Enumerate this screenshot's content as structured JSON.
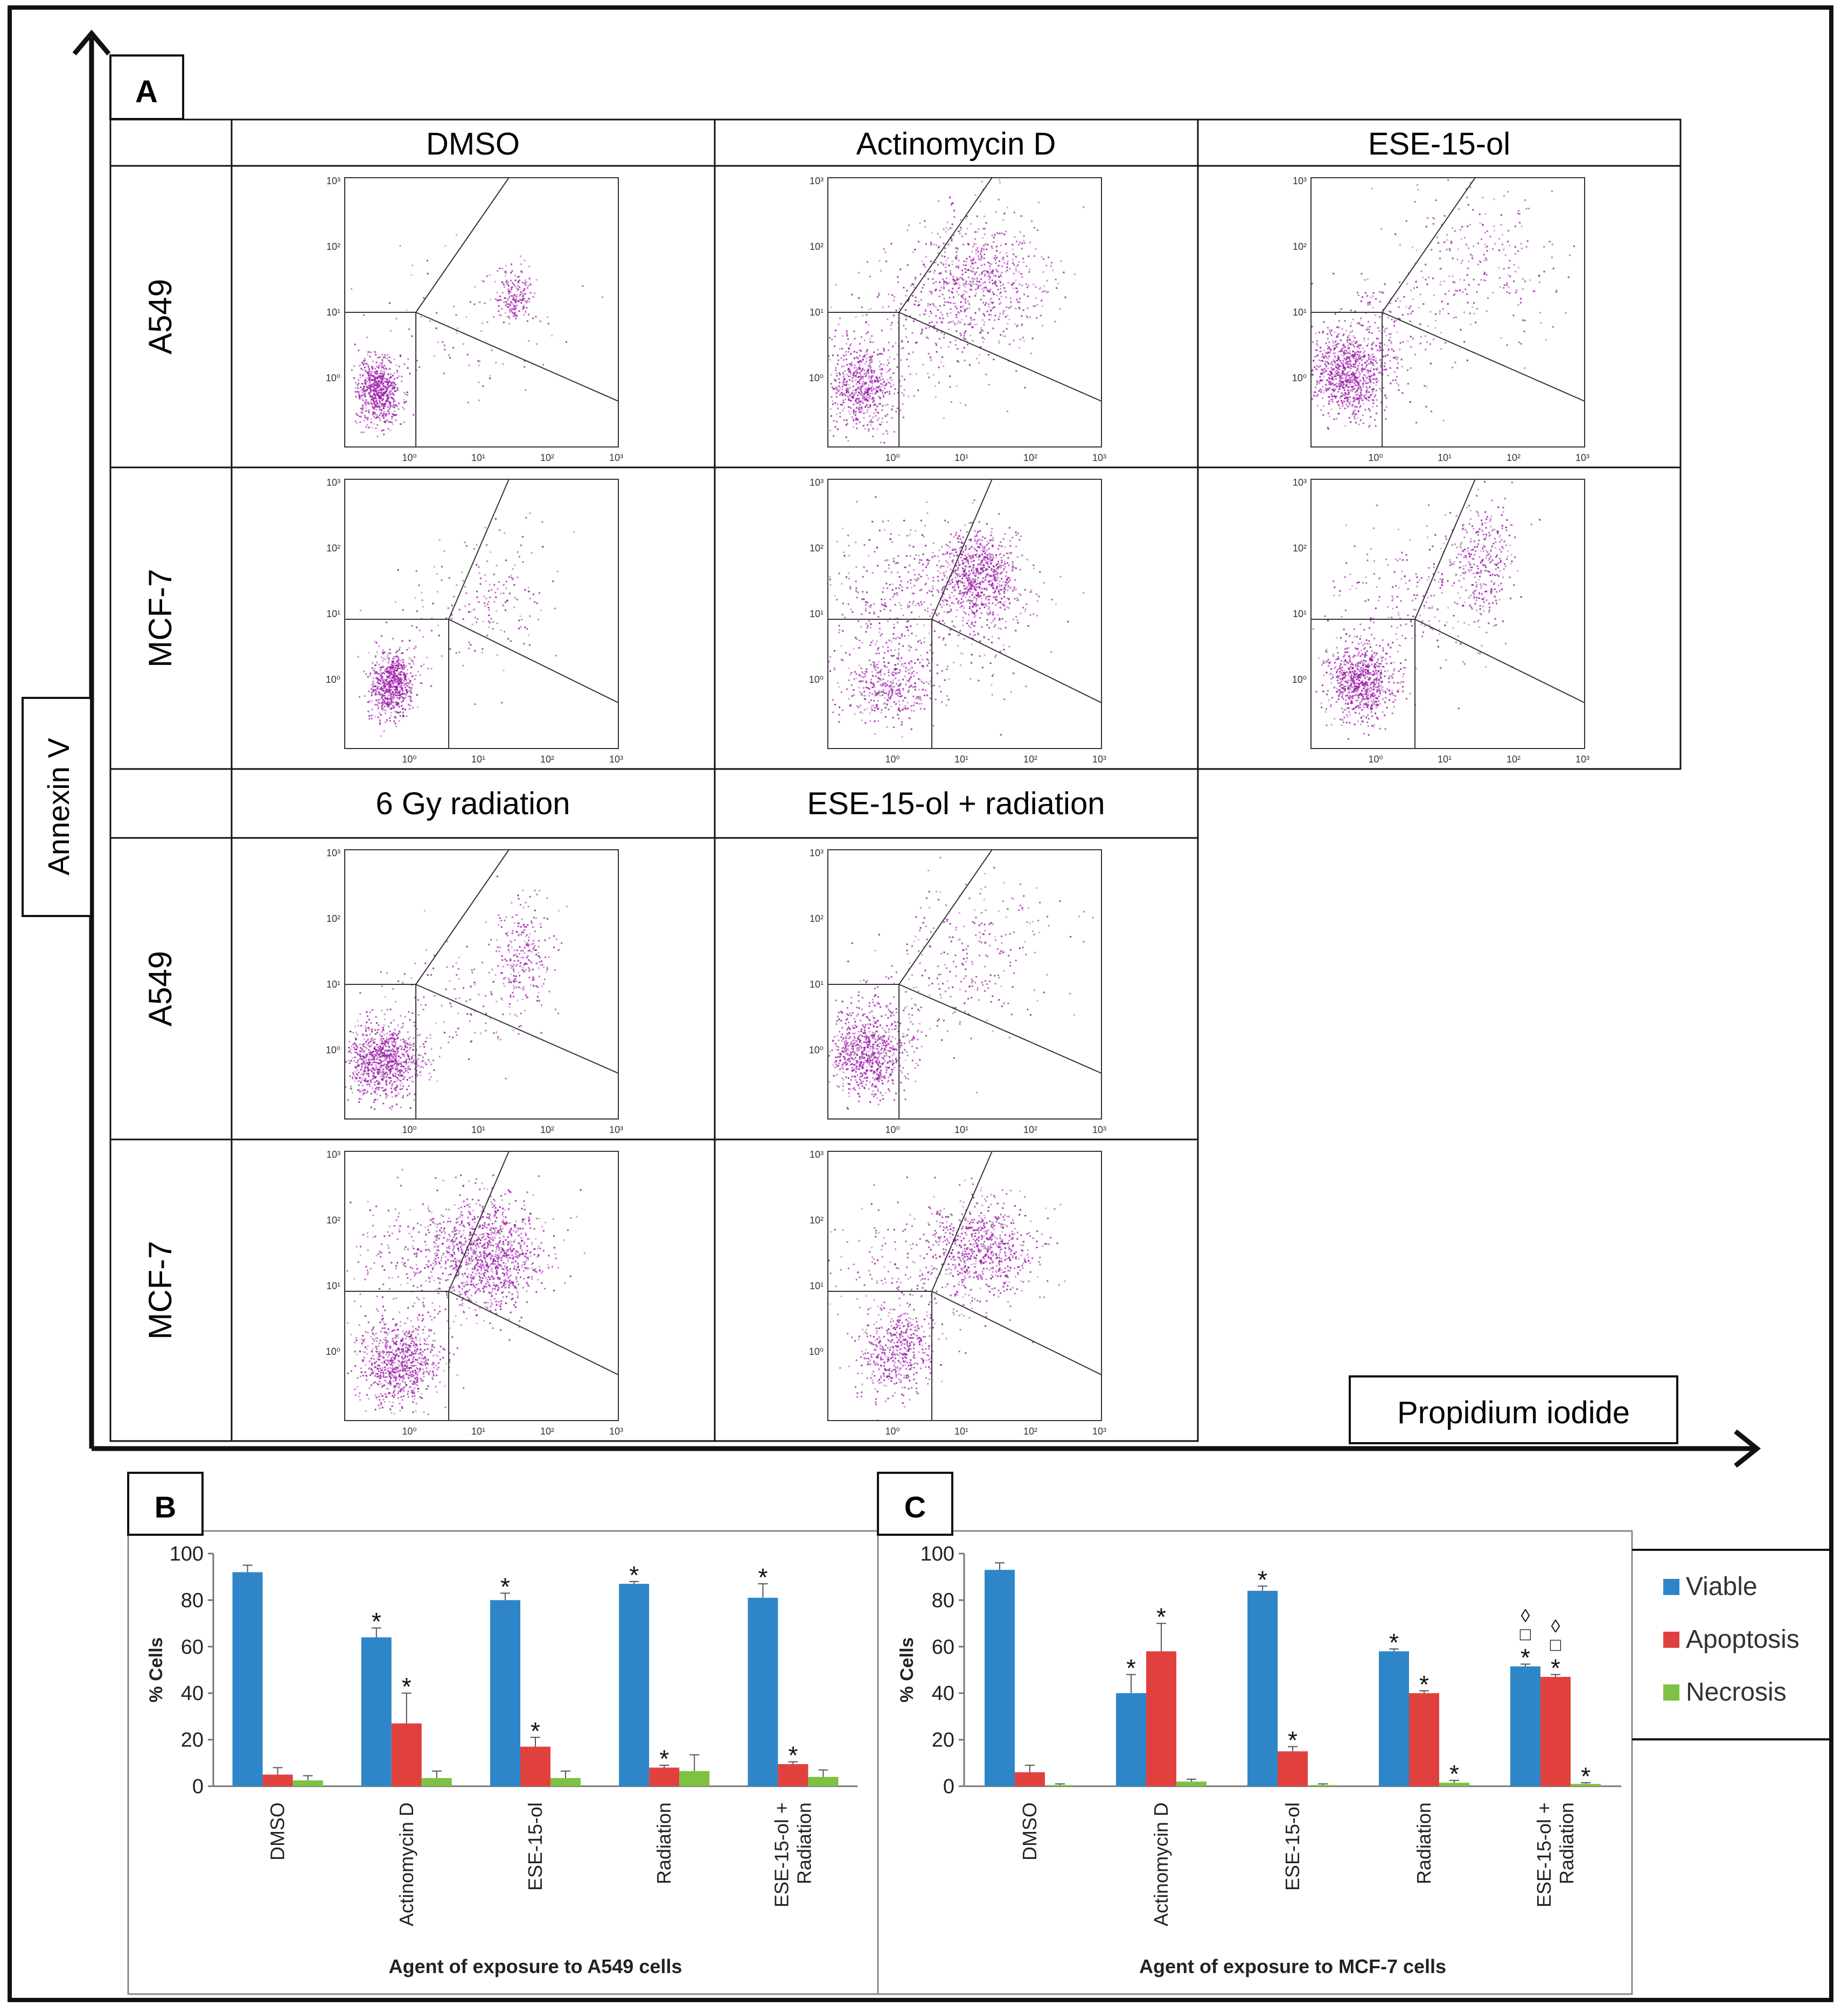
{
  "panel_a": {
    "label": "A",
    "col_headers_top": [
      "DMSO",
      "Actinomycin D",
      "ESE-15-ol"
    ],
    "col_headers_bottom": [
      "6 Gy radiation",
      "ESE-15-ol + radiation"
    ],
    "row_labels_top": [
      "A549",
      "MCF-7"
    ],
    "row_labels_bottom": [
      "A549",
      "MCF-7"
    ],
    "y_axis_label": "Annexin V",
    "x_axis_label": "Propidium iodide",
    "plot_tick_labels": [
      "10⁰",
      "10¹",
      "10²",
      "10³"
    ],
    "plot_tick_labels_y": [
      "10⁰",
      "10¹",
      "10²",
      "10³"
    ]
  },
  "chart_data": [
    {
      "type": "bar",
      "panel_label": "B",
      "categories": [
        "DMSO",
        "Actinomycin D",
        "ESE-15-ol",
        "Radiation",
        "ESE-15-ol + Radiation"
      ],
      "category_lines": [
        [
          "DMSO"
        ],
        [
          "Actinomycin D"
        ],
        [
          "ESE-15-ol"
        ],
        [
          "Radiation"
        ],
        [
          "ESE-15-ol +",
          "Radiation"
        ]
      ],
      "series": [
        {
          "name": "Viable",
          "color": "#2E86C8",
          "values": [
            92,
            64,
            80,
            87,
            81
          ],
          "errors": [
            3,
            4,
            3,
            1,
            6
          ],
          "marks": [
            "",
            "*",
            "*",
            "*",
            "*"
          ]
        },
        {
          "name": "Apoptosis",
          "color": "#E0413E",
          "values": [
            5,
            27,
            17,
            8,
            9.5
          ],
          "errors": [
            3,
            13,
            4,
            1,
            1
          ],
          "marks": [
            "",
            "*",
            "*",
            "*",
            "*"
          ]
        },
        {
          "name": "Necrosis",
          "color": "#7DC242",
          "values": [
            2.5,
            3.5,
            3.5,
            6.5,
            4
          ],
          "errors": [
            2,
            3,
            3,
            7,
            3
          ],
          "marks": [
            "",
            "",
            "",
            "",
            ""
          ]
        }
      ],
      "ylabel": "% Cells",
      "xlabel": "Agent of exposure to A549 cells",
      "ylim": [
        0,
        100
      ],
      "yticks": [
        0,
        20,
        40,
        60,
        80,
        100
      ]
    },
    {
      "type": "bar",
      "panel_label": "C",
      "categories": [
        "DMSO",
        "Actinomycin D",
        "ESE-15-ol",
        "Radiation",
        "ESE-15-ol + Radiation"
      ],
      "category_lines": [
        [
          "DMSO"
        ],
        [
          "Actinomycin D"
        ],
        [
          "ESE-15-ol"
        ],
        [
          "Radiation"
        ],
        [
          "ESE-15-ol +",
          "Radiation"
        ]
      ],
      "series": [
        {
          "name": "Viable",
          "color": "#2E86C8",
          "values": [
            93,
            40,
            84,
            58,
            51.5
          ],
          "errors": [
            3,
            8,
            2,
            1,
            1
          ],
          "marks": [
            "",
            "*",
            "*",
            "*",
            "◊\n□\n*"
          ]
        },
        {
          "name": "Apoptosis",
          "color": "#E0413E",
          "values": [
            6,
            58,
            15,
            40,
            47
          ],
          "errors": [
            3,
            12,
            2,
            1,
            1
          ],
          "marks": [
            "",
            "*",
            "*",
            "*",
            "◊\n□\n*"
          ]
        },
        {
          "name": "Necrosis",
          "color": "#7DC242",
          "values": [
            0.5,
            2,
            0.5,
            1.5,
            1
          ],
          "errors": [
            0.5,
            1,
            0.5,
            1,
            0.5
          ],
          "marks": [
            "",
            "",
            "",
            "*",
            "*"
          ]
        }
      ],
      "ylabel": "% Cells",
      "xlabel": "Agent of exposure to MCF-7 cells",
      "ylim": [
        0,
        100
      ],
      "yticks": [
        0,
        20,
        40,
        60,
        80,
        100
      ]
    }
  ],
  "legend": {
    "items": [
      {
        "name": "Viable",
        "color": "#2E86C8"
      },
      {
        "name": "Apoptosis",
        "color": "#E0413E"
      },
      {
        "name": "Necrosis",
        "color": "#7DC242"
      }
    ]
  }
}
